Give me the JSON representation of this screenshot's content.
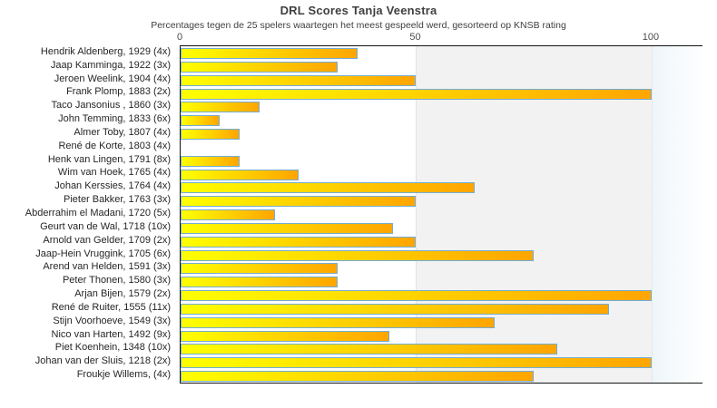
{
  "title": "DRL Scores Tanja Veenstra",
  "subtitle": "Percentages tegen de 25 spelers waartegen het meest gespeeld werd, gesorteerd op KNSB rating",
  "chart_data": {
    "type": "bar",
    "orientation": "horizontal",
    "title": "DRL Scores Tanja Veenstra",
    "subtitle": "Percentages tegen de 25 spelers waartegen het meest gespeeld werd, gesorteerd op KNSB rating",
    "xlabel": "",
    "ylabel": "",
    "xlim": [
      0,
      110.6
    ],
    "x_ticks": [
      0,
      50,
      100
    ],
    "grid": false,
    "legend": null,
    "categories": [
      "Hendrik Aldenberg, 1929 (4x)",
      "Jaap Kamminga, 1922 (3x)",
      "Jeroen Weelink, 1904 (4x)",
      "Frank Plomp, 1883 (2x)",
      "Taco Jansonius , 1860 (3x)",
      "John Temming, 1833 (6x)",
      "Almer Toby, 1807 (4x)",
      "René de Korte, 1803 (4x)",
      "Henk van Lingen, 1791 (8x)",
      "Wim van Hoek, 1765 (4x)",
      "Johan Kerssies, 1764 (4x)",
      "Pieter Bakker, 1763 (3x)",
      "Abderrahim el Madani, 1720 (5x)",
      "Geurt van de Wal, 1718 (10x)",
      "Arnold van Gelder, 1709 (2x)",
      "Jaap-Hein Vruggink, 1705 (6x)",
      "Arend van Helden, 1591 (3x)",
      "Peter Thonen, 1580 (3x)",
      "Arjan Bijen, 1579 (2x)",
      "René de Ruiter, 1555 (11x)",
      "Stijn Voorhoeve, 1549 (3x)",
      "Nico van Harten, 1492 (9x)",
      "Piet Koenhein, 1348 (10x)",
      "Johan van der Sluis, 1218 (2x)",
      "Froukje Willems,  (4x)"
    ],
    "values": [
      37.5,
      33.3,
      50,
      100,
      16.7,
      8.3,
      12.5,
      0,
      12.5,
      25,
      62.5,
      50,
      20,
      45,
      50,
      75,
      33.3,
      33.3,
      100,
      90.9,
      66.7,
      44.4,
      80,
      100,
      75
    ],
    "zones": [
      {
        "from": 0,
        "to": 50,
        "color": "#ffffff"
      },
      {
        "from": 50,
        "to": 100,
        "color": "#f2f2f2"
      },
      {
        "from": 100,
        "to": 110.6,
        "color": "pale-blue-gradient"
      }
    ],
    "colors": {
      "bar_gradient_start": "#ffff00",
      "bar_gradient_end": "#ffa500",
      "bar_border": "#74add1",
      "zone_mid": "#f2f2f2",
      "zone_high": "#eef6fb",
      "plot_border": "#141414",
      "title_text": "#3f3f3f",
      "label_text": "#262626",
      "tick_text": "#4d4d4d"
    }
  }
}
